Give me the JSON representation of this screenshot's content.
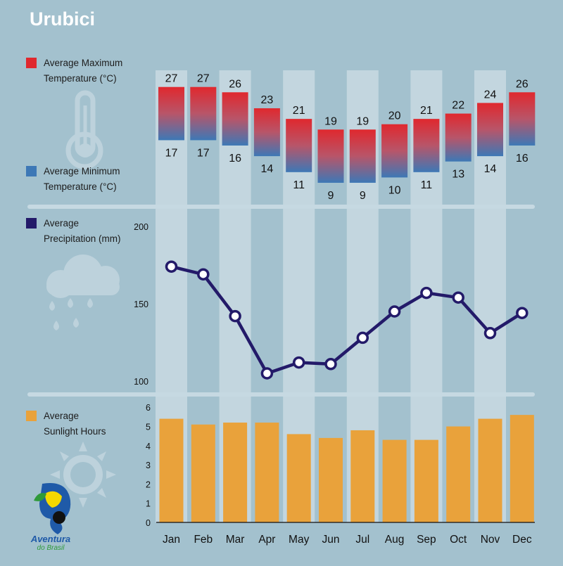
{
  "title": "Urubici",
  "logo": {
    "line1": "Aventura",
    "line2": "do Brasil"
  },
  "colors": {
    "background": "#a3c1ce",
    "stripe": "#c3d6df",
    "divider": "#c6d9e2",
    "max_temp": "#e0282e",
    "min_temp": "#3d78b6",
    "precip": "#231a69",
    "sunlight": "#e9a23b",
    "icon": "#bdd2dc"
  },
  "chart_data": [
    {
      "type": "bar",
      "name": "temperature",
      "categories": [
        "Jan",
        "Feb",
        "Mar",
        "Apr",
        "May",
        "Jun",
        "Jul",
        "Aug",
        "Sep",
        "Oct",
        "Nov",
        "Dec"
      ],
      "series": [
        {
          "name": "Average Maximum Temperature (°C)",
          "values": [
            27,
            27,
            26,
            23,
            21,
            19,
            19,
            20,
            21,
            22,
            24,
            26
          ]
        },
        {
          "name": "Average Minimum Temperature (°C)",
          "values": [
            17,
            17,
            16,
            14,
            11,
            9,
            9,
            10,
            11,
            13,
            14,
            16
          ]
        }
      ],
      "legend": [
        {
          "line1": "Average Maximum",
          "line2": "Temperature (°C)"
        },
        {
          "line1": "Average Minimum",
          "line2": "Temperature (°C)"
        }
      ]
    },
    {
      "type": "line",
      "name": "precipitation",
      "categories": [
        "Jan",
        "Feb",
        "Mar",
        "Apr",
        "May",
        "Jun",
        "Jul",
        "Aug",
        "Sep",
        "Oct",
        "Nov",
        "Dec"
      ],
      "series": [
        {
          "name": "Average Precipitation (mm)",
          "values": [
            174,
            169,
            142,
            105,
            112,
            111,
            128,
            145,
            157,
            154,
            131,
            144
          ]
        }
      ],
      "yticks": [
        100,
        150,
        200
      ],
      "ylim": [
        100,
        200
      ],
      "legend": [
        {
          "line1": "Average",
          "line2": "Precipitation (mm)"
        }
      ]
    },
    {
      "type": "bar",
      "name": "sunlight",
      "categories": [
        "Jan",
        "Feb",
        "Mar",
        "Apr",
        "May",
        "Jun",
        "Jul",
        "Aug",
        "Sep",
        "Oct",
        "Nov",
        "Dec"
      ],
      "series": [
        {
          "name": "Average Sunlight Hours",
          "values": [
            5.4,
            5.1,
            5.2,
            5.2,
            4.6,
            4.4,
            4.8,
            4.3,
            4.3,
            5.0,
            5.4,
            5.6
          ]
        }
      ],
      "yticks": [
        0,
        1,
        2,
        3,
        4,
        5,
        6
      ],
      "ylim": [
        0,
        6
      ],
      "legend": [
        {
          "line1": "Average",
          "line2": "Sunlight Hours"
        }
      ]
    }
  ]
}
